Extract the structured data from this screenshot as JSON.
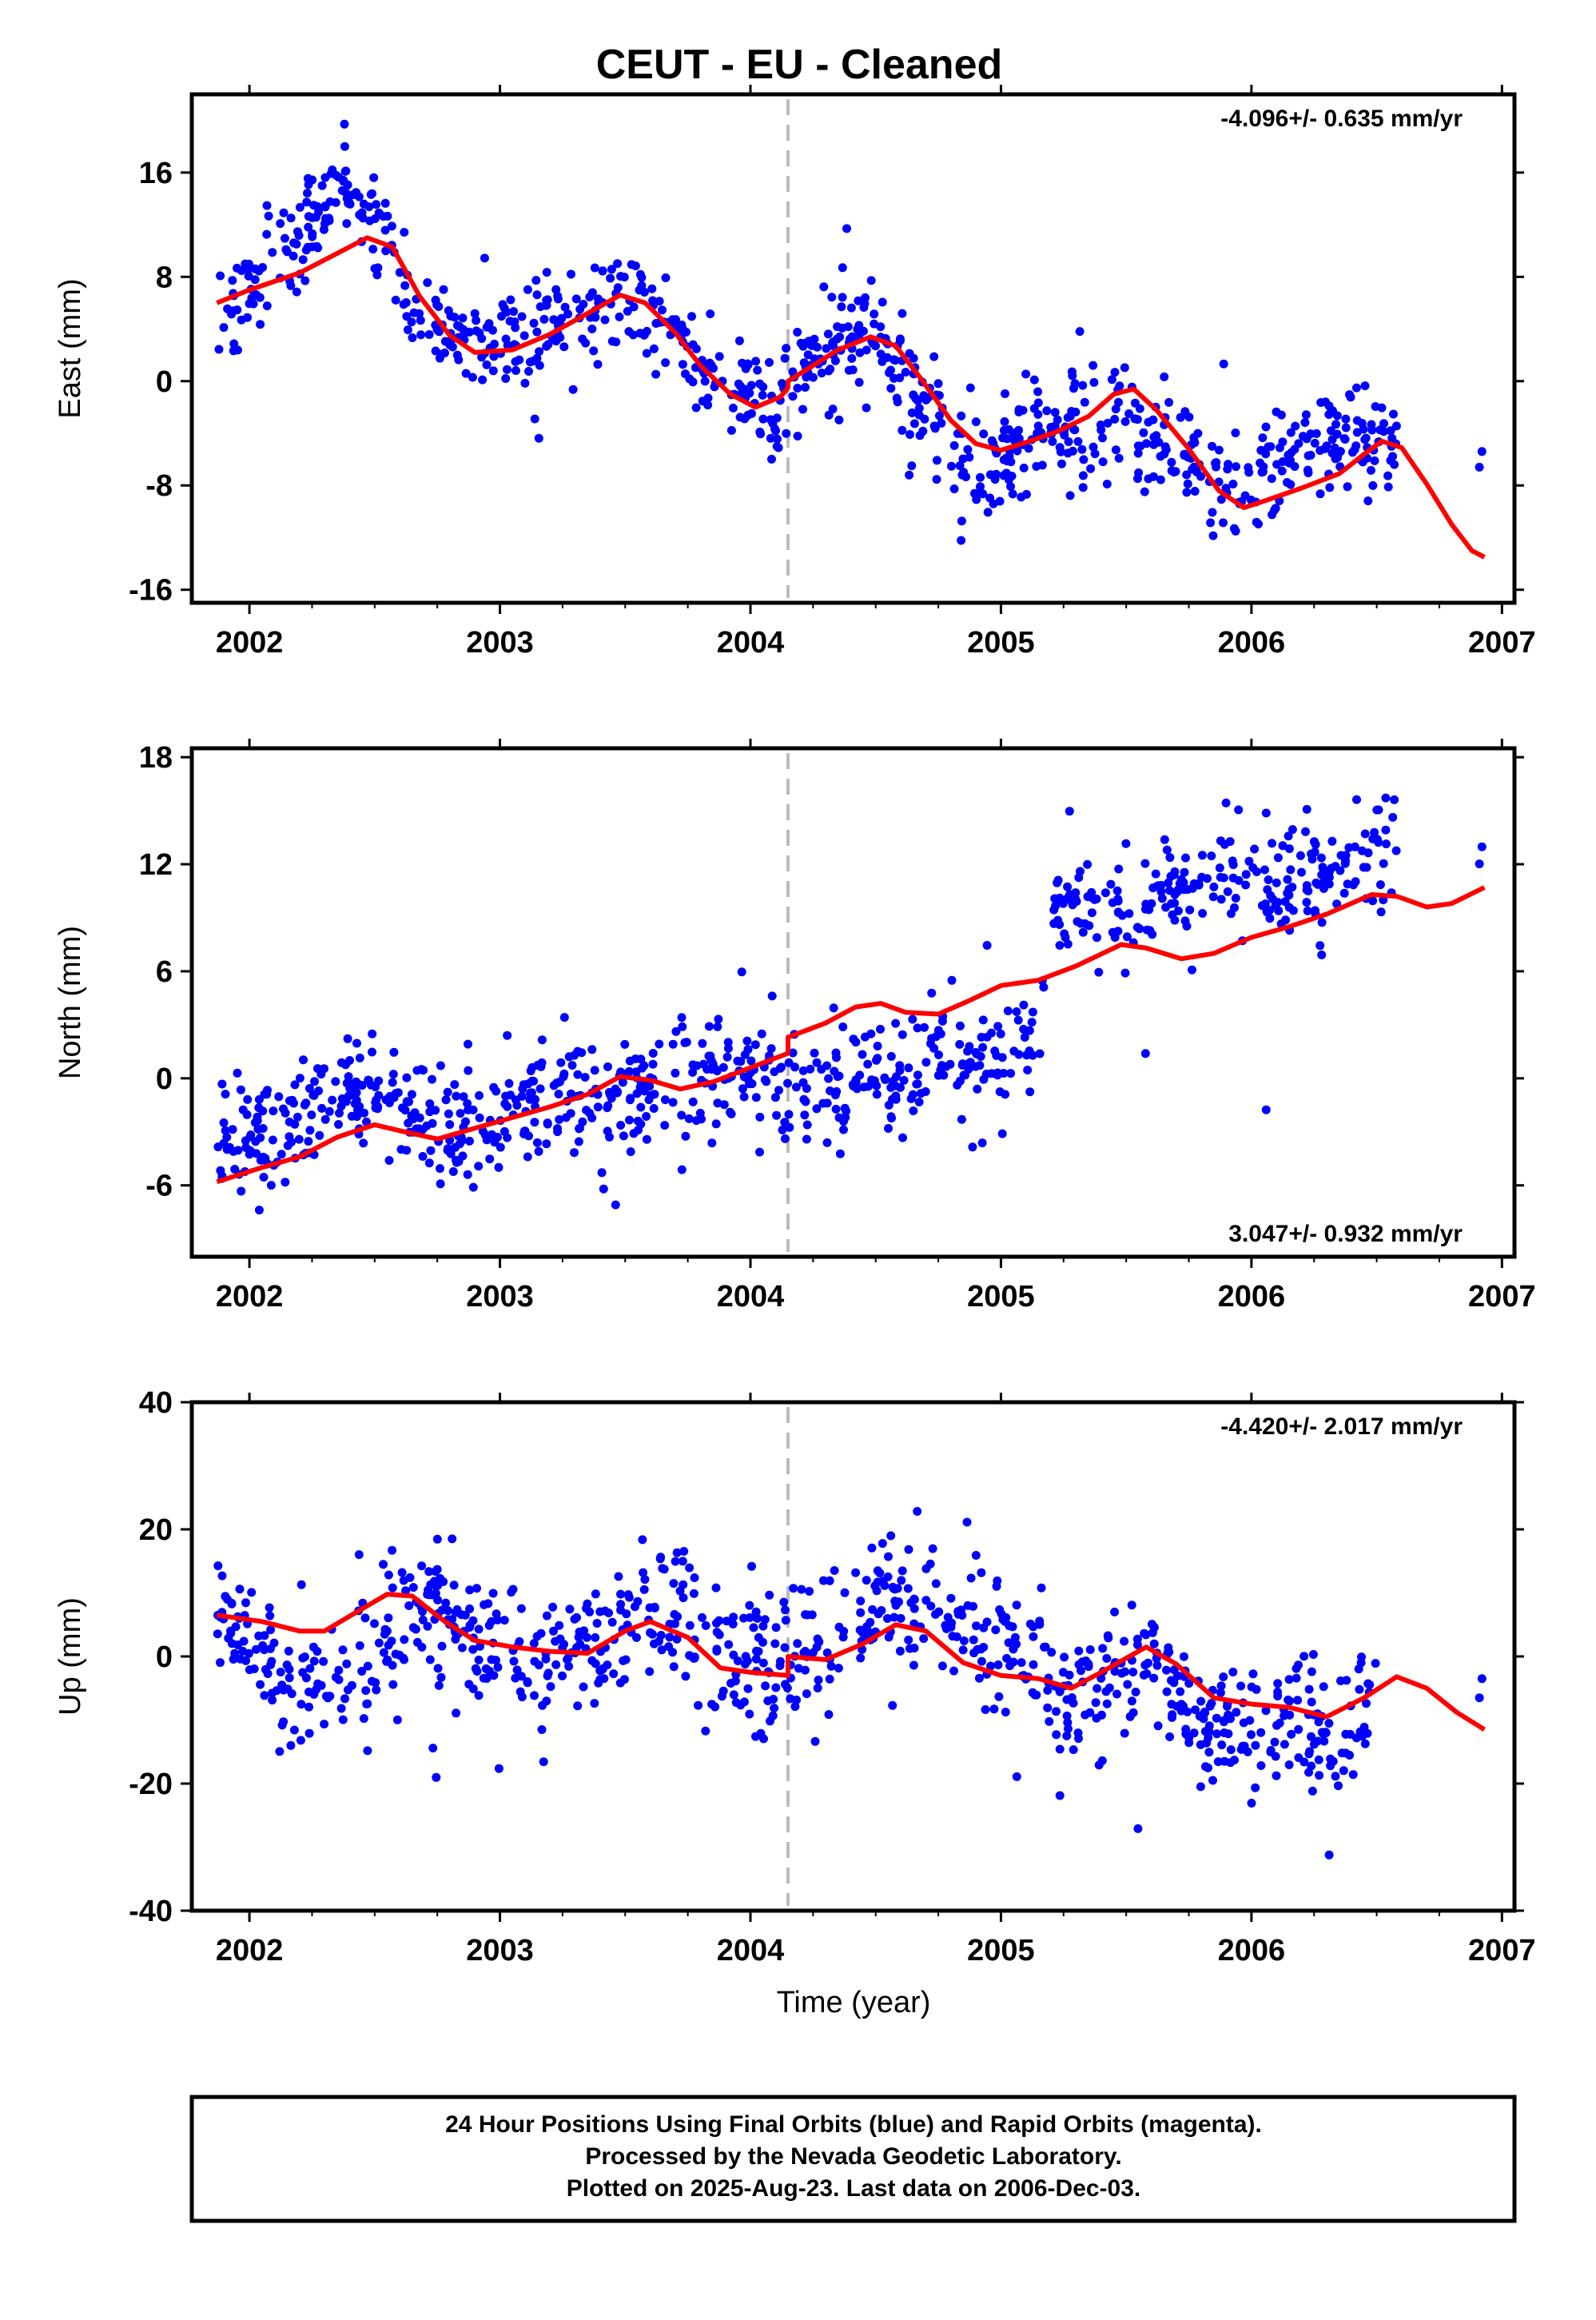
{
  "chart_data": [
    {
      "type": "scatter",
      "title": "CEUT  - EU - Cleaned",
      "ylabel": "East (mm)",
      "rate_label": "-4.096+/- 0.635 mm/yr",
      "xlim": [
        2001.77,
        2007.05
      ],
      "ylim": [
        -17,
        22
      ],
      "x_ticks": [
        2002,
        2003,
        2004,
        2005,
        2006,
        2007
      ],
      "y_ticks": [
        -16,
        -8,
        0,
        8,
        16
      ],
      "break_x": 2004.15,
      "series": [
        {
          "role": "daily positions",
          "color": "#0000ff",
          "anchors": [
            [
              2001.87,
              6
            ],
            [
              2002.0,
              7
            ],
            [
              2002.15,
              9
            ],
            [
              2002.25,
              12
            ],
            [
              2002.4,
              14
            ],
            [
              2002.55,
              12
            ],
            [
              2002.65,
              6
            ],
            [
              2002.8,
              3
            ],
            [
              2003.0,
              3
            ],
            [
              2003.25,
              4
            ],
            [
              2003.45,
              7
            ],
            [
              2003.6,
              5
            ],
            [
              2003.8,
              1
            ],
            [
              2003.95,
              -2
            ],
            [
              2004.1,
              -2
            ],
            [
              2004.2,
              1
            ],
            [
              2004.35,
              3
            ],
            [
              2004.5,
              4
            ],
            [
              2004.65,
              -1
            ],
            [
              2004.8,
              -5
            ],
            [
              2004.95,
              -7
            ],
            [
              2005.1,
              -4
            ],
            [
              2005.3,
              -4
            ],
            [
              2005.45,
              -2
            ],
            [
              2005.6,
              -4
            ],
            [
              2005.8,
              -7
            ],
            [
              2005.95,
              -9
            ],
            [
              2006.05,
              -6
            ],
            [
              2006.25,
              -5
            ],
            [
              2006.4,
              -4
            ],
            [
              2006.5,
              -5
            ],
            [
              2006.58,
              -6
            ]
          ],
          "spread": 2.0
        },
        {
          "role": "model fit",
          "color": "#ff0000",
          "points": [
            [
              2001.87,
              6
            ],
            [
              2002.0,
              7
            ],
            [
              2002.2,
              8.3
            ],
            [
              2002.35,
              9.8
            ],
            [
              2002.47,
              11
            ],
            [
              2002.57,
              10.3
            ],
            [
              2002.68,
              6.5
            ],
            [
              2002.8,
              3.5
            ],
            [
              2002.9,
              2.2
            ],
            [
              2003.05,
              2.4
            ],
            [
              2003.2,
              3.6
            ],
            [
              2003.35,
              5.2
            ],
            [
              2003.48,
              6.6
            ],
            [
              2003.58,
              6
            ],
            [
              2003.7,
              3.7
            ],
            [
              2003.8,
              1.2
            ],
            [
              2003.92,
              -1
            ],
            [
              2004.02,
              -2
            ],
            [
              2004.12,
              -1.2
            ],
            [
              2004.15,
              -0.5
            ],
            [
              2004.15,
              0
            ],
            [
              2004.25,
              1.2
            ],
            [
              2004.35,
              2.4
            ],
            [
              2004.48,
              3.4
            ],
            [
              2004.58,
              2.7
            ],
            [
              2004.68,
              0.2
            ],
            [
              2004.8,
              -3
            ],
            [
              2004.9,
              -4.8
            ],
            [
              2005.0,
              -5.3
            ],
            [
              2005.1,
              -4.7
            ],
            [
              2005.22,
              -3.9
            ],
            [
              2005.35,
              -2.7
            ],
            [
              2005.45,
              -1
            ],
            [
              2005.53,
              -0.6
            ],
            [
              2005.62,
              -2.2
            ],
            [
              2005.75,
              -5.2
            ],
            [
              2005.87,
              -8.4
            ],
            [
              2005.97,
              -9.7
            ],
            [
              2006.05,
              -9.2
            ],
            [
              2006.2,
              -8.2
            ],
            [
              2006.35,
              -7.1
            ],
            [
              2006.45,
              -5.6
            ],
            [
              2006.52,
              -4.6
            ],
            [
              2006.6,
              -5.1
            ],
            [
              2006.7,
              -7.9
            ],
            [
              2006.8,
              -11
            ],
            [
              2006.88,
              -13
            ],
            [
              2006.93,
              -13.5
            ]
          ]
        }
      ]
    },
    {
      "type": "scatter",
      "ylabel": "North (mm)",
      "rate_label": "3.047+/- 0.932 mm/yr",
      "xlim": [
        2001.77,
        2007.05
      ],
      "ylim": [
        -10,
        18.5
      ],
      "x_ticks": [
        2002,
        2003,
        2004,
        2005,
        2006,
        2007
      ],
      "y_ticks": [
        -6,
        0,
        6,
        12,
        18
      ],
      "break_x": 2004.15,
      "series": [
        {
          "role": "daily positions",
          "color": "#0000ff",
          "anchors": [
            [
              2001.87,
              -3.5
            ],
            [
              2002.05,
              -3.5
            ],
            [
              2002.2,
              -2
            ],
            [
              2002.35,
              -0.5
            ],
            [
              2002.55,
              -1
            ],
            [
              2002.75,
              -2.5
            ],
            [
              2003.0,
              -2
            ],
            [
              2003.25,
              -1.5
            ],
            [
              2003.5,
              -1
            ],
            [
              2003.75,
              0
            ],
            [
              2004.0,
              0.5
            ],
            [
              2004.15,
              0
            ],
            [
              2004.35,
              -0.5
            ],
            [
              2004.55,
              0
            ],
            [
              2004.75,
              0.5
            ],
            [
              2004.95,
              1
            ],
            [
              2005.15,
              1.5
            ],
            [
              2005.2,
              9
            ],
            [
              2005.45,
              10
            ],
            [
              2005.7,
              11
            ],
            [
              2005.95,
              10.5
            ],
            [
              2006.2,
              11
            ],
            [
              2006.45,
              11.5
            ],
            [
              2006.58,
              12.5
            ]
          ],
          "spread": 1.6
        },
        {
          "role": "model fit",
          "color": "#ff0000",
          "points": [
            [
              2001.87,
              -5.8
            ],
            [
              2002.05,
              -5
            ],
            [
              2002.2,
              -4.4
            ],
            [
              2002.35,
              -3.3
            ],
            [
              2002.5,
              -2.6
            ],
            [
              2002.62,
              -3
            ],
            [
              2002.75,
              -3.4
            ],
            [
              2002.9,
              -2.8
            ],
            [
              2003.05,
              -2.2
            ],
            [
              2003.2,
              -1.6
            ],
            [
              2003.35,
              -0.9
            ],
            [
              2003.48,
              0.1
            ],
            [
              2003.6,
              -0.1
            ],
            [
              2003.72,
              -0.6
            ],
            [
              2003.85,
              -0.2
            ],
            [
              2004.0,
              0.6
            ],
            [
              2004.15,
              1.4
            ],
            [
              2004.15,
              2.3
            ],
            [
              2004.3,
              3.1
            ],
            [
              2004.42,
              4
            ],
            [
              2004.52,
              4.2
            ],
            [
              2004.62,
              3.7
            ],
            [
              2004.75,
              3.6
            ],
            [
              2004.88,
              4.4
            ],
            [
              2005.0,
              5.2
            ],
            [
              2005.15,
              5.5
            ],
            [
              2005.3,
              6.3
            ],
            [
              2005.48,
              7.5
            ],
            [
              2005.58,
              7.3
            ],
            [
              2005.72,
              6.7
            ],
            [
              2005.85,
              7
            ],
            [
              2006.0,
              7.9
            ],
            [
              2006.15,
              8.5
            ],
            [
              2006.3,
              9.2
            ],
            [
              2006.48,
              10.3
            ],
            [
              2006.58,
              10.2
            ],
            [
              2006.7,
              9.6
            ],
            [
              2006.8,
              9.8
            ],
            [
              2006.93,
              10.7
            ]
          ]
        }
      ]
    },
    {
      "type": "scatter",
      "ylabel": "Up (mm)",
      "rate_label": "-4.420+/- 2.017 mm/yr",
      "xlabel": "Time (year)",
      "xlim": [
        2001.77,
        2007.05
      ],
      "ylim": [
        -40,
        40
      ],
      "x_ticks": [
        2002,
        2003,
        2004,
        2005,
        2006,
        2007
      ],
      "y_ticks": [
        -40,
        -20,
        0,
        20,
        40
      ],
      "break_x": 2004.15,
      "series": [
        {
          "role": "daily positions",
          "color": "#0000ff",
          "anchors": [
            [
              2001.87,
              6
            ],
            [
              2002.05,
              0
            ],
            [
              2002.2,
              -6
            ],
            [
              2002.35,
              -4
            ],
            [
              2002.5,
              2
            ],
            [
              2002.65,
              8
            ],
            [
              2002.85,
              5
            ],
            [
              2003.0,
              -2
            ],
            [
              2003.2,
              0
            ],
            [
              2003.4,
              3
            ],
            [
              2003.55,
              8
            ],
            [
              2003.75,
              6
            ],
            [
              2003.95,
              0
            ],
            [
              2004.15,
              -2
            ],
            [
              2004.35,
              2
            ],
            [
              2004.55,
              8
            ],
            [
              2004.7,
              9
            ],
            [
              2004.9,
              4
            ],
            [
              2005.1,
              2
            ],
            [
              2005.25,
              -8
            ],
            [
              2005.45,
              -3
            ],
            [
              2005.6,
              0
            ],
            [
              2005.8,
              -10
            ],
            [
              2006.0,
              -12
            ],
            [
              2006.2,
              -10
            ],
            [
              2006.35,
              -14
            ],
            [
              2006.5,
              -5
            ]
          ],
          "spread": 5.0
        },
        {
          "role": "model fit",
          "color": "#ff0000",
          "points": [
            [
              2001.87,
              6.5
            ],
            [
              2002.05,
              5.5
            ],
            [
              2002.2,
              4
            ],
            [
              2002.3,
              4
            ],
            [
              2002.42,
              6.8
            ],
            [
              2002.55,
              9.8
            ],
            [
              2002.65,
              9.5
            ],
            [
              2002.78,
              5.5
            ],
            [
              2002.9,
              2.5
            ],
            [
              2003.05,
              1.5
            ],
            [
              2003.2,
              0.8
            ],
            [
              2003.35,
              0.5
            ],
            [
              2003.5,
              4
            ],
            [
              2003.6,
              5.5
            ],
            [
              2003.75,
              3
            ],
            [
              2003.88,
              -1.8
            ],
            [
              2004.0,
              -2.5
            ],
            [
              2004.15,
              -3
            ],
            [
              2004.15,
              0
            ],
            [
              2004.3,
              -0.5
            ],
            [
              2004.45,
              2
            ],
            [
              2004.58,
              5
            ],
            [
              2004.7,
              4
            ],
            [
              2004.85,
              -1
            ],
            [
              2005.0,
              -3
            ],
            [
              2005.15,
              -3.5
            ],
            [
              2005.28,
              -5
            ],
            [
              2005.4,
              -2.5
            ],
            [
              2005.58,
              1.5
            ],
            [
              2005.7,
              -1.2
            ],
            [
              2005.85,
              -6.5
            ],
            [
              2006.0,
              -7.5
            ],
            [
              2006.15,
              -8
            ],
            [
              2006.3,
              -9.5
            ],
            [
              2006.45,
              -6.5
            ],
            [
              2006.58,
              -3.2
            ],
            [
              2006.7,
              -5
            ],
            [
              2006.82,
              -8.8
            ],
            [
              2006.93,
              -11.5
            ]
          ]
        }
      ]
    }
  ],
  "footer_lines": [
    "24 Hour Positions Using Final Orbits (blue) and Rapid Orbits (magenta).",
    "Processed by the Nevada Geodetic Laboratory.",
    "Plotted on 2025-Aug-23. Last data on 2006-Dec-03."
  ]
}
